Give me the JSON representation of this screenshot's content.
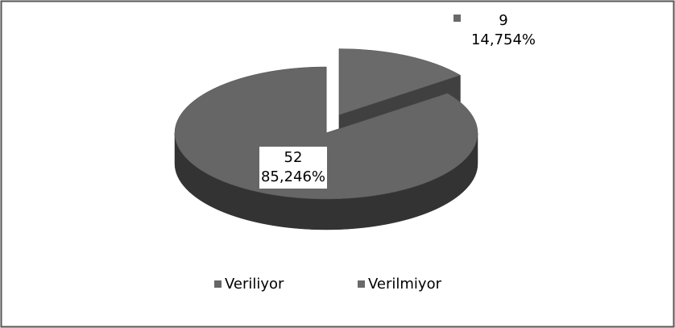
{
  "chart_data": {
    "type": "pie3d",
    "categories": [
      "Veriliyor",
      "Verilmiyor"
    ],
    "values": [
      52,
      9
    ],
    "percent_labels": [
      "85,246%",
      "14,754%"
    ],
    "colors": [
      "#666666",
      "#6a6a6a"
    ],
    "legend": "bottom"
  }
}
